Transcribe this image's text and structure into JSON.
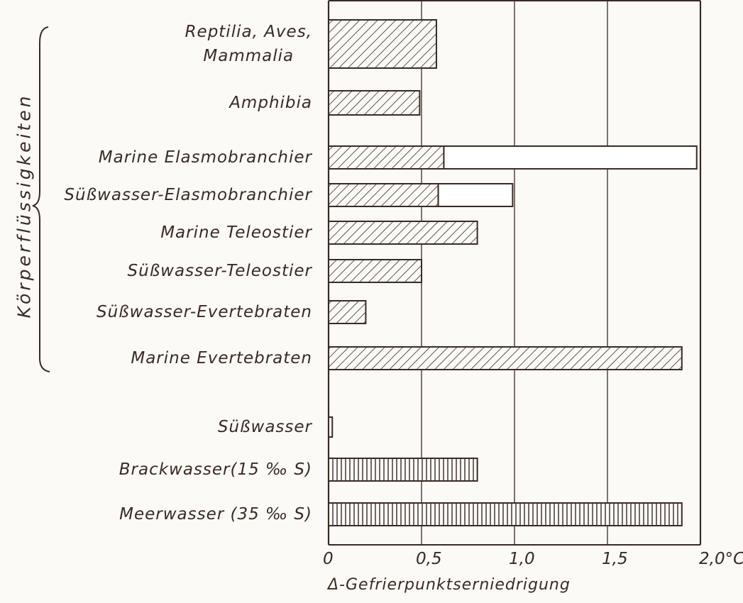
{
  "chart_data": {
    "type": "bar",
    "orientation": "horizontal",
    "categories": [
      "Reptilia, Aves,\nMammalia",
      "Amphibia",
      "Marine Elasmobranchier",
      "Süßwasser-Elasmobranchier",
      "Marine Teleostier",
      "Süßwasser-Teleostier",
      "Süßwasser-Evertebraten",
      "Marine Evertebraten",
      "Süßwasser",
      "Brackwasser(15 ‰ S)",
      "Meerwasser (35 ‰ S)"
    ],
    "series": [
      {
        "color": "#3a2a25",
        "patterns": [
          "diagonal",
          "diagonal",
          "diagonal",
          "diagonal",
          "diagonal",
          "diagonal",
          "diagonal",
          "diagonal",
          "vertical",
          "vertical",
          "vertical"
        ],
        "values": [
          0.58,
          0.49,
          0.62,
          0.59,
          0.8,
          0.5,
          0.2,
          1.9,
          0.02,
          0.8,
          1.9
        ]
      },
      {
        "color": "#ffffff",
        "values": [
          null,
          null,
          1.36,
          0.4,
          null,
          null,
          null,
          null,
          null,
          null,
          null
        ]
      }
    ],
    "group_label": "Körperflüssigkeiten",
    "xlabel": "Δ-Gefrierpunktserniedrigung",
    "xlim": [
      0,
      2
    ],
    "xticks": [
      0,
      {
        "value": 0.5,
        "label": "0,5"
      },
      {
        "value": 1,
        "label": "1,0"
      },
      {
        "value": 1.5,
        "label": "1,5"
      },
      {
        "value": 2,
        "label": "2,0°C"
      }
    ],
    "grid": true
  }
}
